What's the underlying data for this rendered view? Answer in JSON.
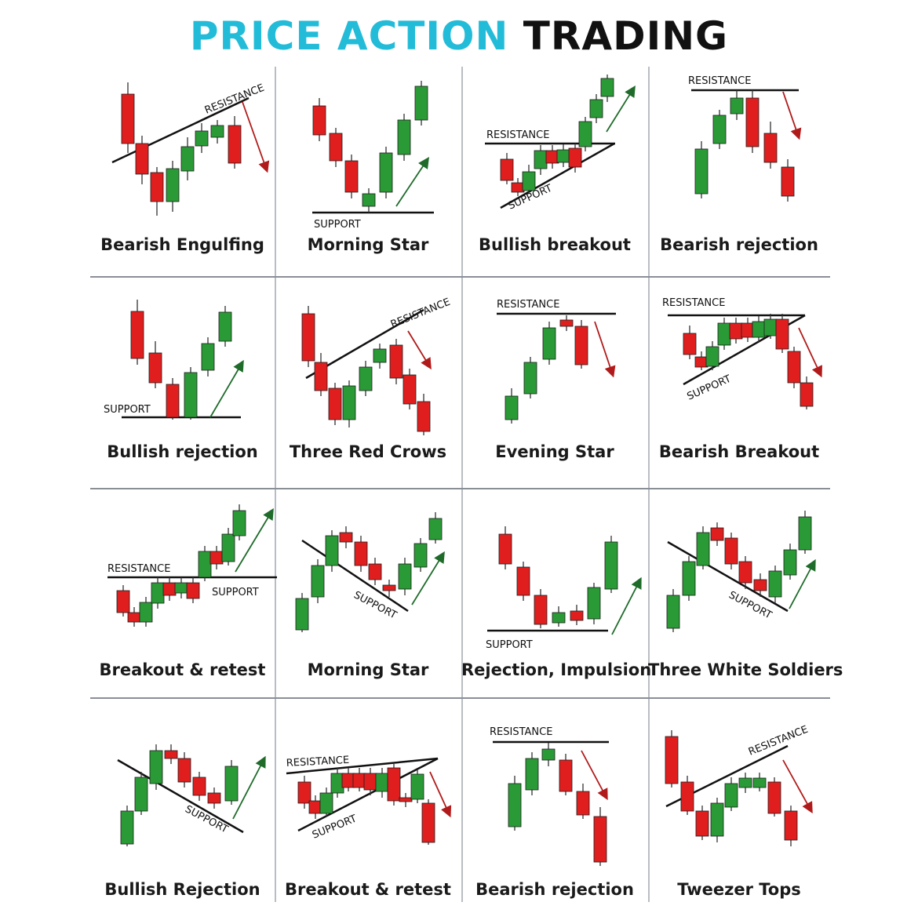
{
  "title": {
    "part1": "PRICE ACTION",
    "part2": "TRADING"
  },
  "colors": {
    "bull": "#2a9a36",
    "bear": "#e01e1e",
    "line": "#111111",
    "arrow": "#b11a1a",
    "arrow_up": "#1e6b2a"
  },
  "panels": [
    {
      "label": "Bearish Engulfing",
      "annotations": [
        "RESISTANCE"
      ]
    },
    {
      "label": "Morning Star",
      "annotations": [
        "SUPPORT"
      ]
    },
    {
      "label": "Bullish breakout",
      "annotations": [
        "RESISTANCE",
        "SUPPORT"
      ]
    },
    {
      "label": "Bearish rejection",
      "annotations": [
        "RESISTANCE"
      ]
    },
    {
      "label": "Bullish rejection",
      "annotations": [
        "SUPPORT"
      ]
    },
    {
      "label": "Three Red Crows",
      "annotations": [
        "RESISTANCE"
      ]
    },
    {
      "label": "Evening Star",
      "annotations": [
        "RESISTANCE"
      ]
    },
    {
      "label": "Bearish Breakout",
      "annotations": [
        "RESISTANCE",
        "SUPPORT"
      ]
    },
    {
      "label": "Breakout & retest",
      "annotations": [
        "RESISTANCE",
        "SUPPORT"
      ]
    },
    {
      "label": "Morning Star",
      "annotations": [
        "SUPPORT"
      ]
    },
    {
      "label": "Rejection, Impulsion",
      "annotations": [
        "SUPPORT"
      ]
    },
    {
      "label": "Three White Soldiers",
      "annotations": [
        "SUPPORT"
      ]
    },
    {
      "label": "Bullish Rejection",
      "annotations": [
        "SUPPORT"
      ]
    },
    {
      "label": "Breakout & retest",
      "annotations": [
        "RESISTANCE",
        "SUPPORT"
      ]
    },
    {
      "label": "Bearish rejection",
      "annotations": [
        "RESISTANCE"
      ]
    },
    {
      "label": "Tweezer Tops",
      "annotations": [
        "RESISTANCE"
      ]
    }
  ]
}
